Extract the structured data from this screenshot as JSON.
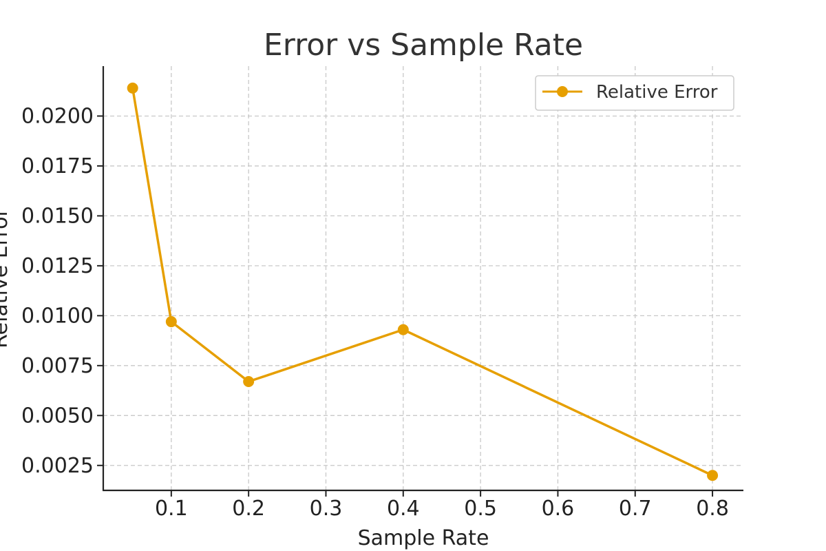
{
  "chart_data": {
    "type": "line",
    "title": "Error vs Sample Rate",
    "xlabel": "Sample Rate",
    "ylabel": "Relative Error",
    "xlim": [
      0.012,
      0.84
    ],
    "ylim": [
      0.00125,
      0.0225
    ],
    "xticks": [
      0.1,
      0.2,
      0.3,
      0.4,
      0.5,
      0.6,
      0.7,
      0.8
    ],
    "xtick_labels": [
      "0.1",
      "0.2",
      "0.3",
      "0.4",
      "0.5",
      "0.6",
      "0.7",
      "0.8"
    ],
    "yticks": [
      0.0025,
      0.005,
      0.0075,
      0.01,
      0.0125,
      0.015,
      0.0175,
      0.02
    ],
    "ytick_labels": [
      "0.0025",
      "0.0050",
      "0.0075",
      "0.0100",
      "0.0125",
      "0.0150",
      "0.0175",
      "0.0200"
    ],
    "grid": true,
    "legend_position": "top-right",
    "series": [
      {
        "name": "Relative Error",
        "color": "#E69F00",
        "marker": "circle",
        "x": [
          0.05,
          0.1,
          0.2,
          0.4,
          0.8
        ],
        "y": [
          0.0214,
          0.0097,
          0.0067,
          0.0093,
          0.002
        ]
      }
    ]
  }
}
